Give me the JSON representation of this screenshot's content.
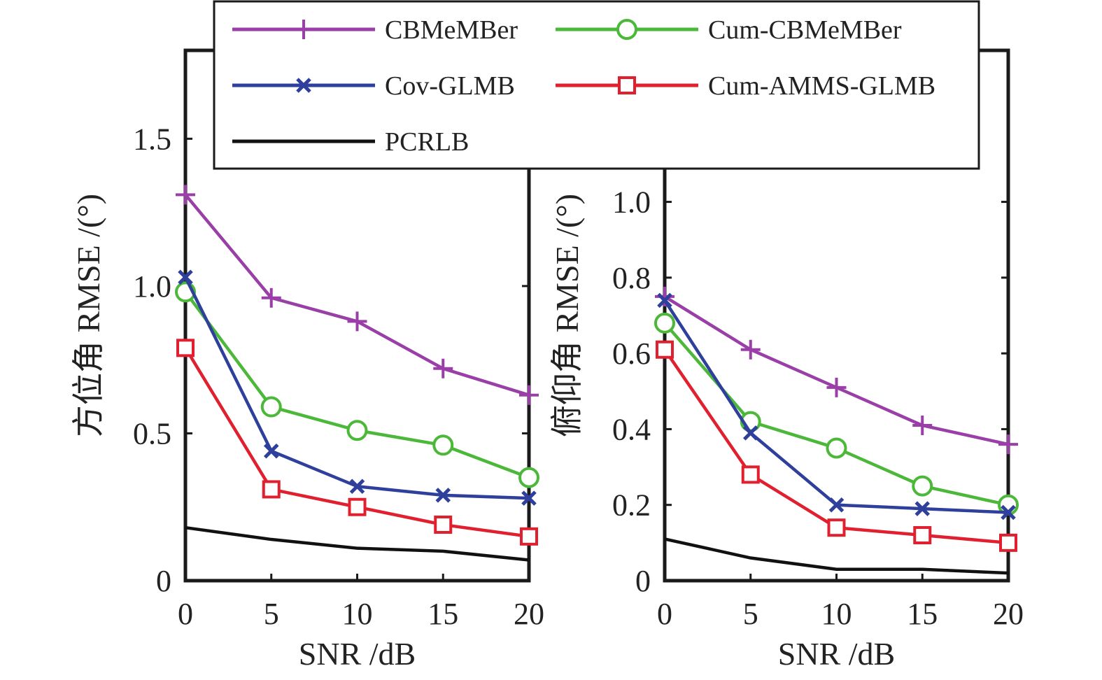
{
  "chart_data": [
    {
      "type": "line",
      "xlabel": "SNR /dB",
      "ylabel": "方位角 RMSE /(°)",
      "x": [
        0,
        5,
        10,
        15,
        20
      ],
      "xticks": [
        "0",
        "5",
        "10",
        "15",
        "20"
      ],
      "xlim": [
        0,
        20
      ],
      "ylim": [
        0,
        1.8
      ],
      "yticks": [
        "0",
        "0.5",
        "1.0",
        "1.5"
      ],
      "ytick_values": [
        0,
        0.5,
        1.0,
        1.5
      ],
      "grid": false,
      "series": [
        {
          "name": "CBMeMBer",
          "marker": "plus",
          "color": "#9b3fa8",
          "values": [
            1.31,
            0.96,
            0.88,
            0.72,
            0.63
          ]
        },
        {
          "name": "Cum-CBMeMBer",
          "marker": "circle",
          "color": "#4cb83a",
          "values": [
            0.98,
            0.59,
            0.51,
            0.46,
            0.35
          ]
        },
        {
          "name": "Cov-GLMB",
          "marker": "x",
          "color": "#2e3f9c",
          "values": [
            1.03,
            0.44,
            0.32,
            0.29,
            0.28
          ]
        },
        {
          "name": "Cum-AMMS-GLMB",
          "marker": "square",
          "color": "#e0202f",
          "values": [
            0.79,
            0.31,
            0.25,
            0.19,
            0.15
          ]
        },
        {
          "name": "PCRLB",
          "marker": "none",
          "color": "#111111",
          "values": [
            0.18,
            0.14,
            0.11,
            0.1,
            0.07
          ]
        }
      ]
    },
    {
      "type": "line",
      "xlabel": "SNR /dB",
      "ylabel": "俯仰角 RMSE /(°)",
      "x": [
        0,
        5,
        10,
        15,
        20
      ],
      "xticks": [
        "0",
        "5",
        "10",
        "15",
        "20"
      ],
      "xlim": [
        0,
        20
      ],
      "ylim": [
        0,
        1.4
      ],
      "yticks": [
        "0",
        "0.2",
        "0.4",
        "0.6",
        "0.8",
        "1.0"
      ],
      "ytick_values": [
        0,
        0.2,
        0.4,
        0.6,
        0.8,
        1.0
      ],
      "grid": false,
      "series": [
        {
          "name": "CBMeMBer",
          "marker": "plus",
          "color": "#9b3fa8",
          "values": [
            0.75,
            0.61,
            0.51,
            0.41,
            0.36
          ]
        },
        {
          "name": "Cum-CBMeMBer",
          "marker": "circle",
          "color": "#4cb83a",
          "values": [
            0.68,
            0.42,
            0.35,
            0.25,
            0.2
          ]
        },
        {
          "name": "Cov-GLMB",
          "marker": "x",
          "color": "#2e3f9c",
          "values": [
            0.74,
            0.39,
            0.2,
            0.19,
            0.18
          ]
        },
        {
          "name": "Cum-AMMS-GLMB",
          "marker": "square",
          "color": "#e0202f",
          "values": [
            0.61,
            0.28,
            0.14,
            0.12,
            0.1
          ]
        },
        {
          "name": "PCRLB",
          "marker": "none",
          "color": "#111111",
          "values": [
            0.11,
            0.06,
            0.03,
            0.03,
            0.02
          ]
        }
      ]
    }
  ],
  "legend": {
    "placement": "top-center",
    "entries": [
      {
        "label": "CBMeMBer",
        "marker": "plus",
        "color": "#9b3fa8"
      },
      {
        "label": "Cum-CBMeMBer",
        "marker": "circle",
        "color": "#4cb83a"
      },
      {
        "label": "Cov-GLMB",
        "marker": "x",
        "color": "#2e3f9c"
      },
      {
        "label": "Cum-AMMS-GLMB",
        "marker": "square",
        "color": "#e0202f"
      },
      {
        "label": "PCRLB",
        "marker": "none",
        "color": "#111111"
      }
    ]
  }
}
